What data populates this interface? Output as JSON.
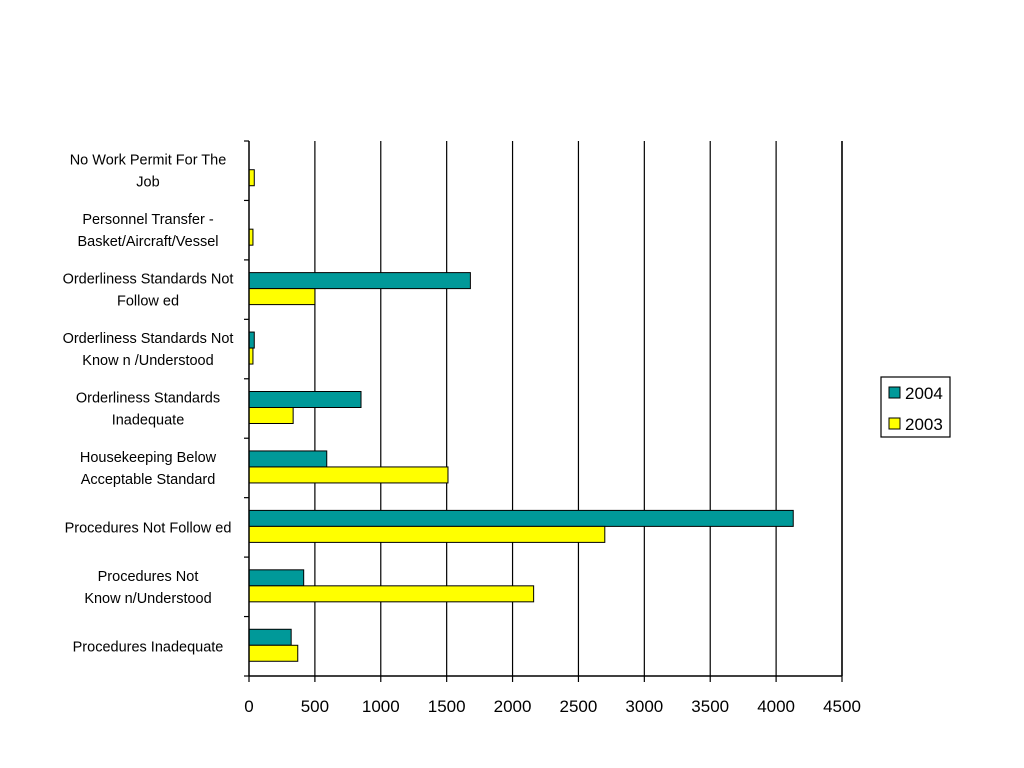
{
  "chart_data": {
    "type": "bar",
    "orientation": "horizontal",
    "categories": [
      "No Work Permit For The Job",
      "Personnel Transfer - Basket/Aircraft/Vessel",
      "Orderliness Standards Not Followed",
      "Orderliness Standards Not Known/Understood",
      "Orderliness Standards Inadequate",
      "Housekeeping Below Acceptable Standard",
      "Procedures Not Followed",
      "Procedures Not Known/Understood",
      "Procedures Inadequate"
    ],
    "category_label_lines": [
      [
        "No Work Permit For The",
        "Job"
      ],
      [
        "Personnel Transfer -",
        "Basket/Aircraft/Vessel"
      ],
      [
        "Orderliness Standards Not",
        "Follow ed"
      ],
      [
        "Orderliness Standards Not",
        "Know n /Understood"
      ],
      [
        "Orderliness Standards",
        "Inadequate"
      ],
      [
        "Housekeeping Below",
        "Acceptable Standard"
      ],
      [
        "Procedures Not Follow ed"
      ],
      [
        "Procedures Not",
        "Know n/Understood"
      ],
      [
        "Procedures Inadequate"
      ]
    ],
    "series": [
      {
        "name": "2004",
        "color": "#009999",
        "values": [
          0,
          0,
          1680,
          40,
          850,
          590,
          4130,
          415,
          320
        ]
      },
      {
        "name": "2003",
        "color": "#ffff00",
        "values": [
          40,
          30,
          500,
          30,
          335,
          1510,
          2700,
          2160,
          370
        ]
      }
    ],
    "xlim": [
      0,
      4500
    ],
    "xticks": [
      0,
      500,
      1000,
      1500,
      2000,
      2500,
      3000,
      3500,
      4000,
      4500
    ],
    "grid": "vertical",
    "legend": "right",
    "title": "",
    "xlabel": "",
    "ylabel": ""
  }
}
